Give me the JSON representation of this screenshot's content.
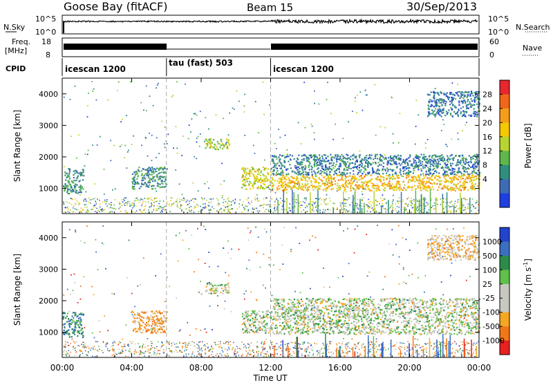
{
  "header": {
    "station": "Goose Bay (fitACF)",
    "beam": "Beam 15",
    "date": "30/Sep/2013"
  },
  "noise_panel": {
    "left_label": "N.Sky",
    "right_label": "N.Search",
    "left_ticks": [
      "10^5",
      "10^0"
    ],
    "right_ticks": [
      "10^5",
      "10^0"
    ]
  },
  "freq_panel": {
    "left_label_1": "Freq.",
    "left_label_2": "[MHz]",
    "right_label": "Nave",
    "left_ticks": [
      "18",
      "8"
    ],
    "right_ticks": [
      "60",
      "0"
    ]
  },
  "cpid_panel": {
    "label": "CPID",
    "modes": [
      {
        "name": "icescan 1200",
        "start_hour": 0,
        "end_hour": 6
      },
      {
        "name": "tau (fast) 503",
        "start_hour": 6,
        "end_hour": 12
      },
      {
        "name": "icescan 1200",
        "start_hour": 12,
        "end_hour": 24
      }
    ]
  },
  "x_axis": {
    "label": "Time UT",
    "ticks": [
      "00:00",
      "04:00",
      "08:00",
      "12:00",
      "16:00",
      "20:00",
      "00:00"
    ]
  },
  "chart_data": [
    {
      "type": "heatmap",
      "id": "power",
      "ylabel": "Slant Range [km]",
      "ylim": [
        200,
        4500
      ],
      "yticks": [
        1000,
        2000,
        3000,
        4000
      ],
      "xlim_hours": [
        0,
        24
      ],
      "colorbar_label": "Power [dB]",
      "colorbar_ticks": [
        "28",
        "24",
        "20",
        "16",
        "12",
        "8",
        "4"
      ],
      "colorbar_colors": [
        "#e8262e",
        "#f0661a",
        "#f59d1b",
        "#f5c800",
        "#b7d433",
        "#5fb64a",
        "#2f8f7f",
        "#3e6cb4",
        "#1f3fe0"
      ],
      "regions": [
        {
          "t0": 0.0,
          "t1": 1.2,
          "r0": 850,
          "r1": 1650,
          "value": 8
        },
        {
          "t0": 4.0,
          "t1": 6.0,
          "r0": 1000,
          "r1": 1700,
          "value": 8
        },
        {
          "t0": 8.2,
          "t1": 9.6,
          "r0": 2250,
          "r1": 2600,
          "value": 14
        },
        {
          "t0": 10.3,
          "t1": 12.0,
          "r0": 1000,
          "r1": 1700,
          "value": 16
        },
        {
          "t0": 12.0,
          "t1": 24.0,
          "r0": 950,
          "r1": 1450,
          "value": 20
        },
        {
          "t0": 12.0,
          "t1": 24.0,
          "r0": 1450,
          "r1": 2100,
          "value": 6
        },
        {
          "t0": 21.0,
          "t1": 24.0,
          "r0": 3300,
          "r1": 4100,
          "value": 5
        }
      ]
    },
    {
      "type": "heatmap",
      "id": "velocity",
      "ylabel": "Slant Range [km]",
      "ylim": [
        200,
        4500
      ],
      "yticks": [
        1000,
        2000,
        3000,
        4000
      ],
      "xlim_hours": [
        0,
        24
      ],
      "colorbar_label": "Velocity [m s^-1]",
      "colorbar_ticks": [
        "1000",
        "500",
        "100",
        "25",
        "-25",
        "-100",
        "-500",
        "-1000"
      ],
      "colorbar_colors": [
        "#2244cc",
        "#3a6fc2",
        "#2c8b4a",
        "#5fc04a",
        "#c8c8c0",
        "#c8c8c0",
        "#f5a623",
        "#f07818",
        "#e82020"
      ],
      "regions": [
        {
          "t0": 0.0,
          "t1": 1.2,
          "r0": 850,
          "r1": 1650,
          "value": 300
        },
        {
          "t0": 4.0,
          "t1": 6.0,
          "r0": 1000,
          "r1": 1700,
          "value": -300
        },
        {
          "t0": 8.2,
          "t1": 9.6,
          "r0": 2250,
          "r1": 2600,
          "value": 0
        },
        {
          "t0": 10.3,
          "t1": 12.0,
          "r0": 1000,
          "r1": 1700,
          "value": 0
        },
        {
          "t0": 12.0,
          "t1": 24.0,
          "r0": 950,
          "r1": 2100,
          "value": 0
        },
        {
          "t0": 21.0,
          "t1": 24.0,
          "r0": 3300,
          "r1": 4100,
          "value": -200
        }
      ]
    }
  ]
}
